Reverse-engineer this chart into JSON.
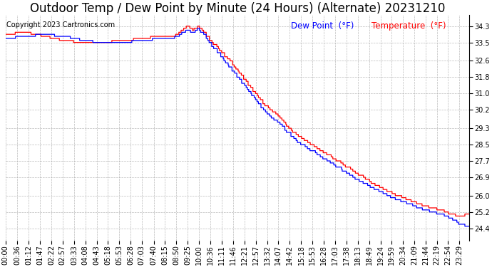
{
  "title": "Outdoor Temp / Dew Point by Minute (24 Hours) (Alternate) 20231210",
  "copyright": "Copyright 2023 Cartronics.com",
  "legend_dew": "Dew Point  (°F)",
  "legend_temp": "Temperature  (°F)",
  "temp_color": "red",
  "dew_color": "blue",
  "grid_color": "#aaaaaa",
  "background_color": "white",
  "ylim_min": 23.8,
  "ylim_max": 34.85,
  "yticks": [
    24.4,
    25.2,
    26.0,
    26.9,
    27.7,
    28.5,
    29.3,
    30.2,
    31.0,
    31.8,
    32.6,
    33.5,
    34.3
  ],
  "title_fontsize": 12,
  "copyright_fontsize": 7,
  "legend_fontsize": 8.5,
  "tick_fontsize": 7
}
